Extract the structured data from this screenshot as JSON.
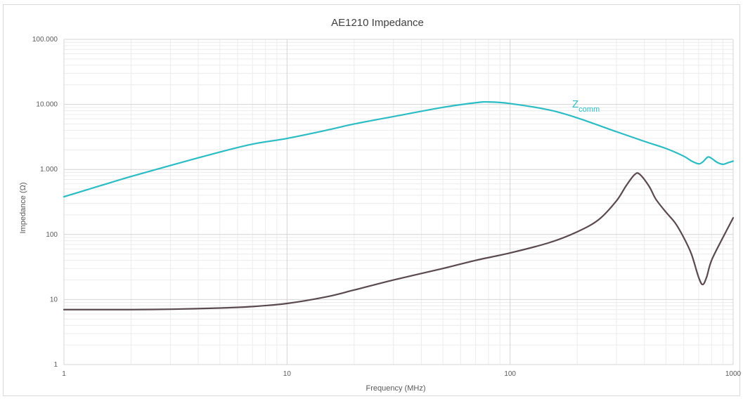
{
  "chart_data": {
    "type": "line",
    "title": "AE1210 Impedance",
    "xlabel": "Frequency (MHz)",
    "ylabel": "Impedance (Ω)",
    "x_scale": "log",
    "y_scale": "log",
    "xlim": [
      1,
      1000
    ],
    "ylim": [
      1,
      100000
    ],
    "x_ticks": [
      1,
      10,
      100,
      1000
    ],
    "x_tick_labels": [
      "1",
      "10",
      "100",
      "1000"
    ],
    "y_ticks": [
      1,
      10,
      100,
      1000,
      10000,
      100000
    ],
    "y_tick_labels": [
      "1",
      "10",
      "100",
      "1.000",
      "10.000",
      "100.000"
    ],
    "grid": true,
    "legend": "none",
    "annotation": {
      "text": "Z",
      "subscript": "comm",
      "color": "#2bbcc4"
    },
    "series": [
      {
        "color": "#2bbcc4",
        "x": [
          1,
          1.5,
          2,
          3,
          5,
          7,
          10,
          15,
          20,
          30,
          50,
          70,
          80,
          100,
          150,
          200,
          300,
          400,
          500,
          600,
          650,
          700,
          730,
          770,
          800,
          850,
          900,
          950,
          1000
        ],
        "y": [
          380,
          580,
          780,
          1150,
          1850,
          2450,
          3000,
          4000,
          5000,
          6500,
          9000,
          10600,
          10900,
          10300,
          8200,
          6200,
          3800,
          2700,
          2100,
          1600,
          1350,
          1220,
          1300,
          1550,
          1480,
          1280,
          1200,
          1270,
          1340
        ]
      },
      {
        "color": "#5a4a4f",
        "x": [
          1,
          2,
          3,
          5,
          7,
          10,
          15,
          20,
          30,
          50,
          70,
          100,
          150,
          200,
          250,
          300,
          330,
          360,
          380,
          420,
          450,
          500,
          550,
          600,
          650,
          700,
          730,
          760,
          800,
          900,
          1000
        ],
        "y": [
          7,
          7,
          7.1,
          7.4,
          7.8,
          8.7,
          11,
          14,
          20,
          30,
          40,
          52,
          75,
          110,
          170,
          330,
          550,
          820,
          850,
          550,
          350,
          220,
          150,
          90,
          50,
          22,
          17,
          22,
          40,
          90,
          180
        ]
      }
    ]
  }
}
